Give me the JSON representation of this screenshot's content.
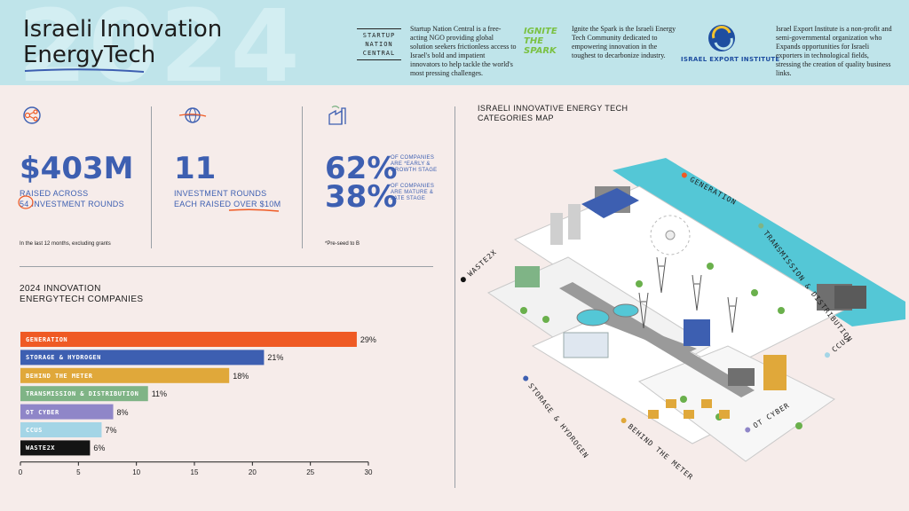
{
  "header": {
    "watermark": "2024",
    "title_line1": "Israeli Innovation",
    "title_line2": "EnergyTech",
    "partners": [
      {
        "name_lines": [
          "STARTUP",
          "NATION",
          "CENTRAL"
        ],
        "description": "Startup Nation Central is a free-acting NGO providing global solution seekers frictionless access to Israel's bold and impatient innovators to help tackle the world's most pressing challenges."
      },
      {
        "name_lines": [
          "IGNITE",
          "THE",
          "SPARK"
        ],
        "description": "Ignite the Spark is the Israeli Energy Tech Community dedicated to empowering innovation in the toughest to decarbonize industry."
      },
      {
        "name_lines": [
          "ISRAEL EXPORT INSTITUTE"
        ],
        "description": "Israel Export Institute is a non-profit and semi-governmental organization who Expands opportunities for Israeli exporters in technological fields, stressing the creation of quality business links."
      }
    ]
  },
  "stats": {
    "raised": {
      "value": "$403M",
      "line1": "RAISED ACROSS",
      "count": "54",
      "line2": "INVESTMENT ROUNDS",
      "note": "In the last 12 months, excluding grants",
      "icon": "network-icon"
    },
    "rounds": {
      "value": "11",
      "line1": "INVESTMENT ROUNDS",
      "line2a": "EACH RAISED",
      "line2b": "OVER $10M",
      "icon": "globe-icon"
    },
    "stages": {
      "early_value": "62%",
      "early_text": [
        "OF COMPANIES",
        "ARE *EARLY &",
        "GROWTH STAGE"
      ],
      "mature_value": "38%",
      "mature_text": [
        "OF COMPANIES",
        "ARE MATURE &",
        "LATE STAGE"
      ],
      "note": "*Pre-seed to B",
      "icon": "factory-icon"
    }
  },
  "chart_title": [
    "2024 INNOVATION",
    "ENERGYTECH COMPANIES"
  ],
  "chart_data": {
    "type": "bar",
    "orientation": "horizontal",
    "categories": [
      "GENERATION",
      "STORAGE & HYDROGEN",
      "BEHIND THE METER",
      "TRANSMISSION & DISTRIBUTION",
      "OT CYBER",
      "CCUS",
      "WASTE2X"
    ],
    "values": [
      29,
      21,
      18,
      11,
      8,
      7,
      6
    ],
    "value_labels": [
      "29%",
      "21%",
      "18%",
      "11%",
      "8%",
      "7%",
      "6%"
    ],
    "colors": [
      "#ef5a24",
      "#3d5fb1",
      "#e0a83a",
      "#7fb486",
      "#8f86c8",
      "#a4d5e6",
      "#141414"
    ],
    "xlim": [
      0,
      30
    ],
    "xticks": [
      "0",
      "5",
      "10",
      "15",
      "20",
      "25",
      "30"
    ],
    "title": "2024 INNOVATION ENERGYTECH COMPANIES"
  },
  "map": {
    "title": [
      "ISRAELI INNOVATIVE ENERGY TECH",
      "CATEGORIES MAP"
    ],
    "labels": [
      {
        "text": "GENERATION",
        "color": "#ef5a24"
      },
      {
        "text": "TRANSMISSION & DISTRIBUTION",
        "color": "#7fb486"
      },
      {
        "text": "WASTE2X",
        "color": "#141414"
      },
      {
        "text": "STORAGE & HYDROGEN",
        "color": "#3d5fb1"
      },
      {
        "text": "CCUS",
        "color": "#a4d5e6"
      },
      {
        "text": "BEHIND THE METER",
        "color": "#e0a83a"
      },
      {
        "text": "OT CYBER",
        "color": "#8f86c8"
      }
    ]
  }
}
